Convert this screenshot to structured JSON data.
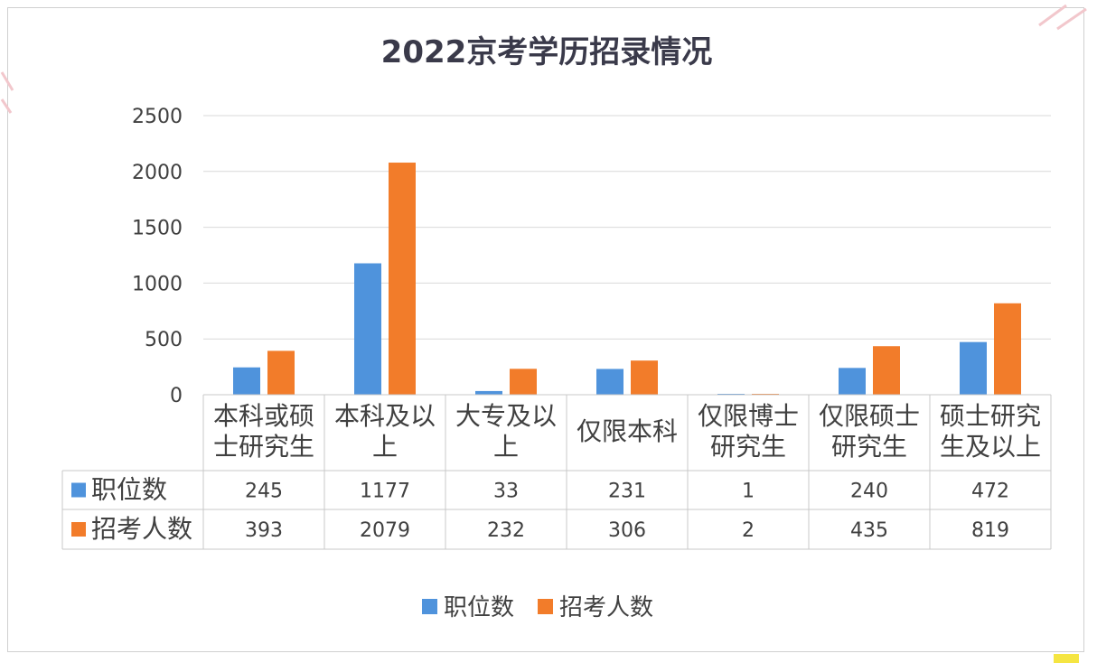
{
  "chart_data": {
    "type": "bar",
    "title": "2022京考学历招录情况",
    "categories": [
      [
        "本科或硕",
        "士研究生"
      ],
      [
        "本科及以",
        "上"
      ],
      [
        "大专及以",
        "上"
      ],
      [
        "仅限本科"
      ],
      [
        "仅限博士",
        "研究生"
      ],
      [
        "仅限硕士",
        "研究生"
      ],
      [
        "硕士研究",
        "生及以上"
      ]
    ],
    "series": [
      {
        "name": "职位数",
        "color": "#4f93dc",
        "values": [
          245,
          1177,
          33,
          231,
          1,
          240,
          472
        ]
      },
      {
        "name": "招考人数",
        "color": "#f27c2a",
        "values": [
          393,
          2079,
          232,
          306,
          2,
          435,
          819
        ]
      }
    ],
    "ylim": [
      0,
      2500
    ],
    "yticks": [
      0,
      500,
      1000,
      1500,
      2000,
      2500
    ],
    "grid": true,
    "legend_position": "bottom",
    "data_table": true
  }
}
